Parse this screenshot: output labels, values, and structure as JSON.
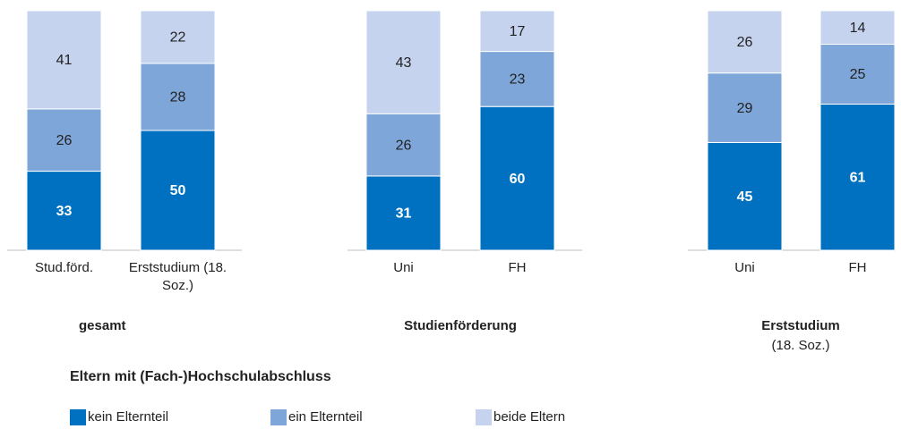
{
  "chart_data": [
    {
      "type": "stacked_bar",
      "title": "gesamt",
      "categories": [
        "Stud.förd.",
        "Erststudium (18. Soz.)"
      ],
      "ylim": [
        0,
        100
      ],
      "series": [
        {
          "name": "kein Elternteil",
          "color": "#0070c0",
          "values": [
            33,
            50
          ]
        },
        {
          "name": "ein Elternteil",
          "color": "#7ea6d9",
          "values": [
            26,
            28
          ]
        },
        {
          "name": "beide Eltern",
          "color": "#c5d3ee",
          "values": [
            41,
            22
          ]
        }
      ]
    },
    {
      "type": "stacked_bar",
      "title": "Studienförderung",
      "categories": [
        "Uni",
        "FH"
      ],
      "ylim": [
        0,
        100
      ],
      "series": [
        {
          "name": "kein Elternteil",
          "color": "#0070c0",
          "values": [
            31,
            60
          ]
        },
        {
          "name": "ein Elternteil",
          "color": "#7ea6d9",
          "values": [
            26,
            23
          ]
        },
        {
          "name": "beide Eltern",
          "color": "#c5d3ee",
          "values": [
            43,
            17
          ]
        }
      ]
    },
    {
      "type": "stacked_bar",
      "title": "Erststudium",
      "subtitle": "(18. Soz.)",
      "categories": [
        "Uni",
        "FH"
      ],
      "ylim": [
        0,
        100
      ],
      "series": [
        {
          "name": "kein Elternteil",
          "color": "#0070c0",
          "values": [
            45,
            61
          ]
        },
        {
          "name": "ein Elternteil",
          "color": "#7ea6d9",
          "values": [
            29,
            25
          ]
        },
        {
          "name": "beide Eltern",
          "color": "#c5d3ee",
          "values": [
            26,
            14
          ]
        }
      ]
    }
  ],
  "legend": {
    "title": "Eltern mit (Fach-)Hochschulabschluss"
  }
}
